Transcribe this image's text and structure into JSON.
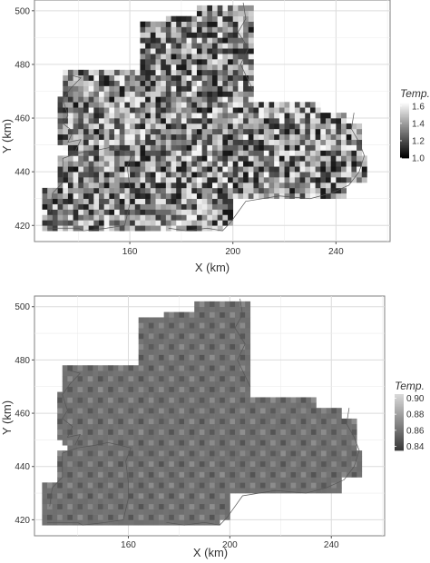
{
  "chart_data": [
    {
      "type": "heatmap",
      "xlabel": "X (km)",
      "ylabel": "Y (km)",
      "x_ticks": [
        160,
        200,
        240
      ],
      "y_ticks": [
        420,
        440,
        460,
        480,
        500
      ],
      "xlim": [
        123,
        261
      ],
      "ylim": [
        414,
        504
      ],
      "grid": true,
      "legend": {
        "title": "Temp.",
        "placement": "right",
        "tick_labels": [
          "1.6",
          "1.4",
          "1.2",
          "1.0"
        ],
        "range": [
          1.0,
          1.65
        ],
        "colors": [
          "#000000",
          "#ffffff"
        ]
      },
      "pattern": "noise",
      "cell_size": 2,
      "region": [
        {
          "x": [
            127,
            142
          ],
          "y": [
            418,
            434
          ]
        },
        {
          "x": [
            133,
            160
          ],
          "y": [
            418,
            447
          ]
        },
        {
          "x": [
            137,
            165
          ],
          "y": [
            418,
            449
          ]
        },
        {
          "x": [
            133,
            143
          ],
          "y": [
            440,
            447
          ]
        },
        {
          "x": [
            150,
            166
          ],
          "y": [
            446,
            449
          ]
        },
        {
          "x": [
            130,
            134
          ],
          "y": [
            425,
            434
          ]
        },
        {
          "x": [
            135,
            166
          ],
          "y": [
            449,
            471
          ]
        },
        {
          "x": [
            132,
            166
          ],
          "y": [
            451,
            469
          ]
        },
        {
          "x": [
            135,
            166
          ],
          "y": [
            468,
            478
          ]
        },
        {
          "x": [
            164,
            208
          ],
          "y": [
            430,
            490
          ]
        },
        {
          "x": [
            164,
            197
          ],
          "y": [
            489,
            496
          ]
        },
        {
          "x": [
            174,
            208
          ],
          "y": [
            490,
            499
          ]
        },
        {
          "x": [
            187,
            208
          ],
          "y": [
            497,
            503
          ]
        },
        {
          "x": [
            206,
            245
          ],
          "y": [
            430,
            462
          ]
        },
        {
          "x": [
            206,
            235
          ],
          "y": [
            461,
            466
          ]
        },
        {
          "x": [
            236,
            250
          ],
          "y": [
            436,
            458
          ]
        },
        {
          "x": [
            248,
            252
          ],
          "y": [
            436,
            447
          ]
        },
        {
          "x": [
            173,
            197
          ],
          "y": [
            418,
            431
          ]
        },
        {
          "x": [
            197,
            201
          ],
          "y": [
            421,
            431
          ]
        },
        {
          "x": [
            164,
            174
          ],
          "y": [
            419,
            431
          ]
        }
      ]
    },
    {
      "type": "heatmap",
      "xlabel": "X (km)",
      "ylabel": "Y (km)",
      "x_ticks": [
        160,
        200,
        240
      ],
      "y_ticks": [
        420,
        440,
        460,
        480,
        500
      ],
      "xlim": [
        123,
        261
      ],
      "ylim": [
        414,
        504
      ],
      "grid": true,
      "legend": {
        "title": "Temp.",
        "placement": "right",
        "tick_labels": [
          "0.90",
          "0.88",
          "0.86",
          "0.84"
        ],
        "range": [
          0.835,
          0.905
        ],
        "colors": [
          "#3a3a3a",
          "#d8d8d8"
        ]
      },
      "pattern": "smooth",
      "cell_size": 2,
      "region": [
        {
          "x": [
            127,
            142
          ],
          "y": [
            418,
            434
          ]
        },
        {
          "x": [
            133,
            160
          ],
          "y": [
            418,
            447
          ]
        },
        {
          "x": [
            137,
            165
          ],
          "y": [
            418,
            449
          ]
        },
        {
          "x": [
            133,
            143
          ],
          "y": [
            440,
            447
          ]
        },
        {
          "x": [
            150,
            166
          ],
          "y": [
            446,
            449
          ]
        },
        {
          "x": [
            130,
            134
          ],
          "y": [
            425,
            434
          ]
        },
        {
          "x": [
            135,
            166
          ],
          "y": [
            449,
            471
          ]
        },
        {
          "x": [
            132,
            166
          ],
          "y": [
            451,
            469
          ]
        },
        {
          "x": [
            135,
            166
          ],
          "y": [
            468,
            478
          ]
        },
        {
          "x": [
            164,
            208
          ],
          "y": [
            430,
            490
          ]
        },
        {
          "x": [
            164,
            197
          ],
          "y": [
            489,
            496
          ]
        },
        {
          "x": [
            174,
            208
          ],
          "y": [
            490,
            499
          ]
        },
        {
          "x": [
            187,
            208
          ],
          "y": [
            497,
            503
          ]
        },
        {
          "x": [
            206,
            245
          ],
          "y": [
            430,
            462
          ]
        },
        {
          "x": [
            206,
            235
          ],
          "y": [
            461,
            466
          ]
        },
        {
          "x": [
            236,
            250
          ],
          "y": [
            436,
            458
          ]
        },
        {
          "x": [
            248,
            252
          ],
          "y": [
            436,
            447
          ]
        },
        {
          "x": [
            173,
            197
          ],
          "y": [
            418,
            431
          ]
        },
        {
          "x": [
            197,
            201
          ],
          "y": [
            421,
            431
          ]
        },
        {
          "x": [
            164,
            174
          ],
          "y": [
            419,
            431
          ]
        }
      ]
    }
  ]
}
